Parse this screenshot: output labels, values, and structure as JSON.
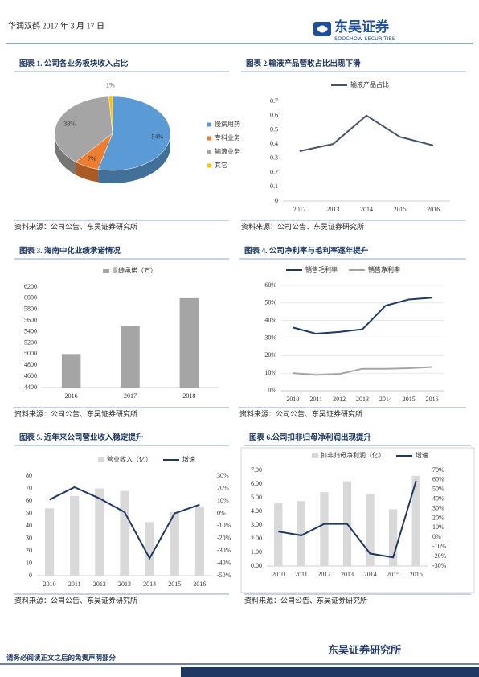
{
  "header": {
    "company_date": "华润双鹤 2017 年 3 月 17 日",
    "logo": "东吴证券",
    "logo_en": "SOOCHOW SECURITIES"
  },
  "figures": [
    {
      "title": "图表 1. 公司各业务板块收入占比",
      "source": "资料来源：公司公告、东吴证券研究所",
      "chart": {
        "type": "pie",
        "categories": [
          "慢病用药",
          "专科业务",
          "输液业务",
          "其它"
        ],
        "values": [
          54,
          7,
          38,
          1
        ],
        "value_labels": [
          "54%",
          "7%",
          "38%",
          "1%"
        ],
        "colors": [
          "#5b9bd5",
          "#ed7d31",
          "#a5a5a5",
          "#ffc000"
        ],
        "legend": "right"
      }
    },
    {
      "title": "图表 2.输液产品营收占比出现下滑",
      "source": "资料来源：公司公告、东吴证券研究所",
      "chart": {
        "type": "line",
        "categories": [
          "2012",
          "2013",
          "2014",
          "2015",
          "2016"
        ],
        "series": [
          {
            "name": "输液产品占比",
            "color": "#44546a",
            "values": [
              0.35,
              0.4,
              0.6,
              0.45,
              0.39
            ]
          }
        ],
        "ylim": [
          0,
          0.7
        ],
        "yticks": [
          0,
          0.1,
          0.2,
          0.3,
          0.4,
          0.5,
          0.6,
          0.7
        ],
        "grid": false,
        "legend": "top"
      }
    },
    {
      "title": "图表 3. 海南中化业绩承诺情况",
      "source": "资料来源：公司公告、东吴证券研究所",
      "chart": {
        "type": "bar",
        "categories": [
          "2016",
          "2017",
          "2018"
        ],
        "series": [
          {
            "name": "业绩承诺（万）",
            "color": "#a5a5a5",
            "values": [
              5000,
              5500,
              6000
            ]
          }
        ],
        "ylim": [
          4400,
          6200
        ],
        "yticks": [
          4400,
          4600,
          4800,
          5000,
          5200,
          5400,
          5600,
          5800,
          6000,
          6200
        ],
        "grid": false,
        "legend": "top"
      }
    },
    {
      "title": "图表 4. 公司净利率与毛利率逐年提升",
      "source": "资料来源：公司公告、东吴证券研究所",
      "chart": {
        "type": "line",
        "categories": [
          "2010",
          "2011",
          "2012",
          "2013",
          "2014",
          "2015",
          "2016"
        ],
        "series": [
          {
            "name": "销售毛利率",
            "color": "#1f3864",
            "values": [
              36,
              32.5,
              33.5,
              35,
              48.5,
              52,
              53
            ]
          },
          {
            "name": "销售净利率",
            "color": "#a5a5a5",
            "values": [
              10,
              9,
              9.5,
              12.5,
              12.5,
              12.8,
              13.5
            ]
          }
        ],
        "ylim": [
          0,
          60
        ],
        "yticks": [
          {
            "value": 0,
            "label": "0%"
          },
          {
            "value": 10,
            "label": "10%"
          },
          {
            "value": 20,
            "label": "20%"
          },
          {
            "value": 30,
            "label": "30%"
          },
          {
            "value": 40,
            "label": "40%"
          },
          {
            "value": 50,
            "label": "50%"
          },
          {
            "value": 60,
            "label": "60%"
          }
        ],
        "grid": true,
        "legend": "top"
      }
    },
    {
      "title": "图表 5. 近年来公司营业收入稳定提升",
      "source": "资料来源：公司公告、东吴证券研究所",
      "chart": {
        "type": "combo",
        "categories": [
          "2010",
          "2011",
          "2012",
          "2013",
          "2014",
          "2015",
          "2016"
        ],
        "series": [
          {
            "name": "营业收入（亿）",
            "type": "bar",
            "color": "#d9d9d9",
            "values": [
              54,
              64,
              70,
              68,
              43,
              51,
              55
            ]
          },
          {
            "name": "增速",
            "type": "line",
            "axis": "y2",
            "color": "#1f3864",
            "values": [
              11,
              21,
              12,
              1,
              -36,
              0,
              7
            ]
          }
        ],
        "ylim": [
          0,
          80
        ],
        "yticks": [
          0,
          10,
          20,
          30,
          40,
          50,
          60,
          70,
          80
        ],
        "y2lim": [
          -50,
          30
        ],
        "y2ticks": [
          {
            "value": -50,
            "label": "-50%"
          },
          {
            "value": -40,
            "label": "-40%"
          },
          {
            "value": -30,
            "label": "-30%"
          },
          {
            "value": -20,
            "label": "-20%"
          },
          {
            "value": -10,
            "label": "-10%"
          },
          {
            "value": 0,
            "label": "0%"
          },
          {
            "value": 10,
            "label": "10%"
          },
          {
            "value": 20,
            "label": "20%"
          },
          {
            "value": 30,
            "label": "30%"
          }
        ],
        "grid": false,
        "legend": "top"
      }
    },
    {
      "title": "图表 6.公司扣非归母净利润出现提升",
      "source": "资料来源：公司公告、东吴证券研究所",
      "chart": {
        "type": "combo",
        "categories": [
          "2010",
          "2011",
          "2012",
          "2013",
          "2014",
          "2015",
          "2016"
        ],
        "series": [
          {
            "name": "扣非归母净利润（亿）",
            "type": "bar",
            "color": "#d9d9d9",
            "values": [
              4.6,
              4.75,
              5.4,
              6.2,
              5.25,
              4.15,
              6.6
            ]
          },
          {
            "name": "增速",
            "type": "line",
            "axis": "y2",
            "color": "#1f3864",
            "values": [
              6,
              2,
              14,
              14,
              -17,
              -21,
              59
            ]
          }
        ],
        "ylim": [
          0,
          7
        ],
        "yticks": [
          {
            "value": 0,
            "label": "0.00"
          },
          {
            "value": 1,
            "label": "1.00"
          },
          {
            "value": 2,
            "label": "2.00"
          },
          {
            "value": 3,
            "label": "3.00"
          },
          {
            "value": 4,
            "label": "4.00"
          },
          {
            "value": 5,
            "label": "5.00"
          },
          {
            "value": 6,
            "label": "6.00"
          },
          {
            "value": 7,
            "label": "7.00"
          }
        ],
        "y2lim": [
          -30,
          70
        ],
        "y2ticks": [
          {
            "value": -30,
            "label": "-30%"
          },
          {
            "value": -20,
            "label": "-20%"
          },
          {
            "value": -10,
            "label": "-10%"
          },
          {
            "value": 0,
            "label": "0%"
          },
          {
            "value": 10,
            "label": "10%"
          },
          {
            "value": 20,
            "label": "20%"
          },
          {
            "value": 30,
            "label": "30%"
          },
          {
            "value": 40,
            "label": "40%"
          },
          {
            "value": 50,
            "label": "50%"
          },
          {
            "value": 60,
            "label": "60%"
          },
          {
            "value": 70,
            "label": "70%"
          }
        ],
        "grid": false,
        "legend": "top"
      }
    }
  ],
  "footer": {
    "institute": "东吴证券研究所",
    "disclaimer": "请务必阅读正文之后的免责声明部分"
  }
}
